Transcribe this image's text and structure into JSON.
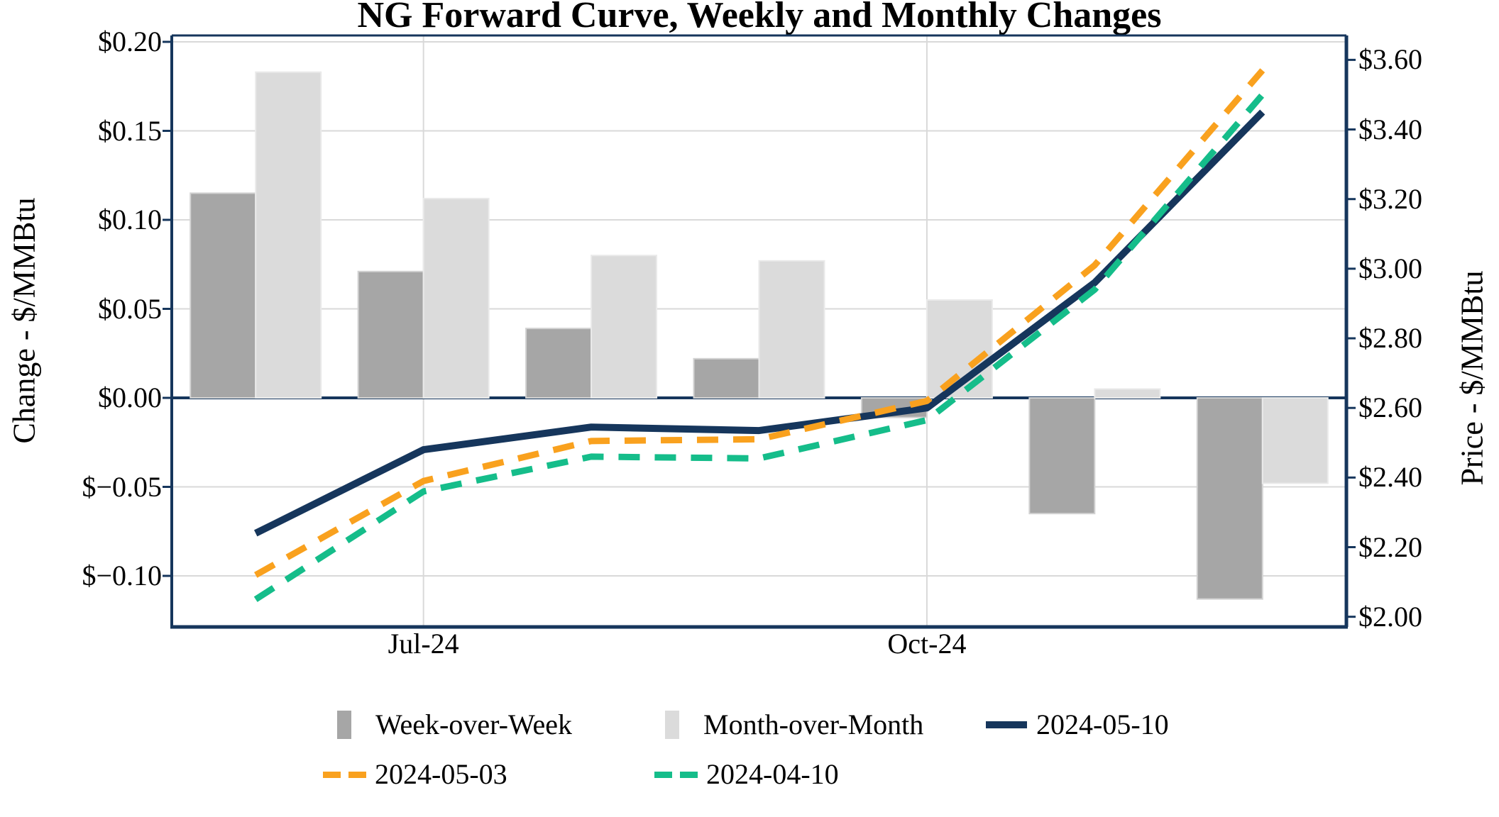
{
  "title": "NG Forward Curve, Weekly and Monthly Changes",
  "chart_data": {
    "type": "bar",
    "subtype": "combo-bar-line-dual-axis",
    "num_groups": 7,
    "x_axis": {
      "visible_tick_labels": [
        {
          "group_index": 1,
          "label": "Jul-24"
        },
        {
          "group_index": 4,
          "label": "Oct-24"
        }
      ]
    },
    "left_axis": {
      "title": "Change - $/MMBtu",
      "range": [
        -0.12868,
        0.20359
      ],
      "ticks": [
        {
          "value": 0.2,
          "label": "$0.20"
        },
        {
          "value": 0.15,
          "label": "$0.15"
        },
        {
          "value": 0.1,
          "label": "$0.10"
        },
        {
          "value": 0.05,
          "label": "$0.05"
        },
        {
          "value": 0.0,
          "label": "$0.00"
        },
        {
          "value": -0.05,
          "label": "$−0.05"
        },
        {
          "value": -0.1,
          "label": "$−0.10"
        }
      ]
    },
    "right_axis": {
      "title": "Price - $/MMBtu",
      "range": [
        1.9708,
        3.6701
      ],
      "ticks": [
        {
          "value": 3.6,
          "label": "$3.60"
        },
        {
          "value": 3.4,
          "label": "$3.40"
        },
        {
          "value": 3.2,
          "label": "$3.20"
        },
        {
          "value": 3.0,
          "label": "$3.00"
        },
        {
          "value": 2.8,
          "label": "$2.80"
        },
        {
          "value": 2.6,
          "label": "$2.60"
        },
        {
          "value": 2.4,
          "label": "$2.40"
        },
        {
          "value": 2.2,
          "label": "$2.20"
        },
        {
          "value": 2.0,
          "label": "$2.00"
        }
      ]
    },
    "bar_series": [
      {
        "name": "Week-over-Week",
        "axis": "left",
        "fill": "#A6A6A6",
        "border": "#D2D2D2",
        "values": [
          0.115,
          0.071,
          0.039,
          0.022,
          -0.011,
          -0.065,
          -0.113
        ]
      },
      {
        "name": "Month-over-Month",
        "axis": "left",
        "fill": "#DBDBDB",
        "border": "#EAEAEA",
        "values": [
          0.183,
          0.112,
          0.08,
          0.077,
          0.055,
          0.005,
          -0.048
        ]
      }
    ],
    "line_series": [
      {
        "name": "2024-05-10",
        "axis": "right",
        "color": "#16365C",
        "dash": "solid",
        "values": [
          2.24,
          2.48,
          2.545,
          2.535,
          2.6,
          2.96,
          3.45
        ]
      },
      {
        "name": "2024-05-03",
        "axis": "right",
        "color": "#F9A11E",
        "dash": "dashed",
        "values": [
          2.12,
          2.39,
          2.505,
          2.51,
          2.62,
          3.01,
          3.57
        ]
      },
      {
        "name": "2024-04-10",
        "axis": "right",
        "color": "#15BD8A",
        "dash": "dashed",
        "values": [
          2.05,
          2.36,
          2.46,
          2.455,
          2.565,
          2.94,
          3.5
        ]
      }
    ],
    "legend": {
      "rows": [
        [
          {
            "swatch": "bar",
            "color": "#A6A6A6",
            "label": "Week-over-Week"
          },
          {
            "swatch": "bar",
            "color": "#DBDBDB",
            "label": "Month-over-Month"
          },
          {
            "swatch": "line",
            "color": "#16365C",
            "label": "2024-05-10"
          }
        ],
        [
          {
            "swatch": "dashes",
            "color": "#F9A11E",
            "label": "2024-05-03"
          },
          {
            "swatch": "dashes",
            "color": "#15BD8A",
            "label": "2024-04-10"
          }
        ]
      ]
    },
    "colors": {
      "axis_frame": "#16365C",
      "zero_line": "#16365C",
      "gridline": "#D9D9D9",
      "text": "#000000",
      "background": "#FFFFFF"
    }
  }
}
